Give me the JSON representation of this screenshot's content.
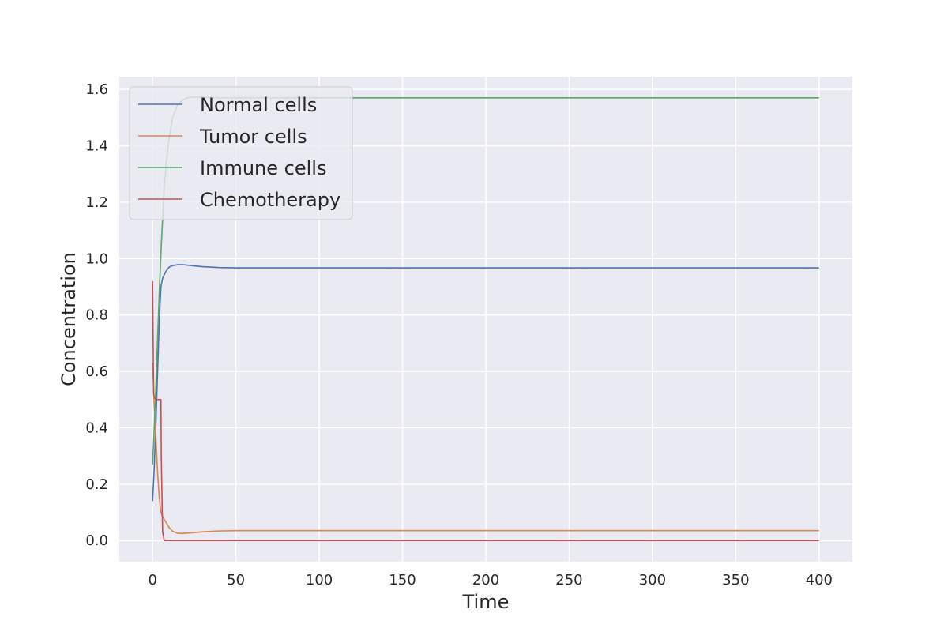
{
  "chart_data": {
    "type": "line",
    "title": "",
    "xlabel": "Time",
    "ylabel": "Concentration",
    "xlim": [
      -20,
      420
    ],
    "ylim": [
      -0.075,
      1.645
    ],
    "xticks": [
      0,
      50,
      100,
      150,
      200,
      250,
      300,
      350,
      400
    ],
    "yticks": [
      0.0,
      0.2,
      0.4,
      0.6,
      0.8,
      1.0,
      1.2,
      1.4,
      1.6
    ],
    "grid": true,
    "legend_position": "upper-left",
    "background": "#eaeaf2",
    "series": [
      {
        "name": "Normal cells",
        "color": "#4c72b0",
        "x": [
          0,
          1,
          2,
          3,
          4,
          5,
          6,
          8,
          10,
          12,
          15,
          18,
          20,
          25,
          30,
          40,
          50,
          75,
          100,
          200,
          300,
          400
        ],
        "y": [
          0.14,
          0.26,
          0.42,
          0.6,
          0.78,
          0.9,
          0.93,
          0.955,
          0.97,
          0.975,
          0.978,
          0.978,
          0.977,
          0.974,
          0.971,
          0.968,
          0.967,
          0.967,
          0.967,
          0.967,
          0.967,
          0.967
        ]
      },
      {
        "name": "Tumor cells",
        "color": "#dd8452",
        "x": [
          0,
          1,
          2,
          3,
          4,
          5,
          6,
          8,
          10,
          12,
          15,
          18,
          20,
          25,
          30,
          40,
          50,
          75,
          100,
          200,
          300,
          400
        ],
        "y": [
          0.63,
          0.48,
          0.36,
          0.24,
          0.15,
          0.1,
          0.085,
          0.065,
          0.045,
          0.033,
          0.026,
          0.025,
          0.026,
          0.028,
          0.031,
          0.034,
          0.035,
          0.035,
          0.035,
          0.035,
          0.035,
          0.035
        ]
      },
      {
        "name": "Immune cells",
        "color": "#55a868",
        "x": [
          0,
          1,
          2,
          3,
          4,
          5,
          6,
          7,
          8,
          10,
          12,
          15,
          18,
          20,
          22,
          25,
          30,
          40,
          50,
          100,
          200,
          300,
          400
        ],
        "y": [
          0.27,
          0.4,
          0.55,
          0.72,
          0.88,
          1.02,
          1.14,
          1.25,
          1.33,
          1.43,
          1.5,
          1.545,
          1.562,
          1.568,
          1.572,
          1.573,
          1.572,
          1.57,
          1.57,
          1.57,
          1.57,
          1.57,
          1.57
        ]
      },
      {
        "name": "Chemotherapy",
        "color": "#c44e52",
        "x": [
          0,
          0.6,
          1.2,
          2,
          3,
          4,
          5,
          5.2,
          6,
          7,
          10,
          50,
          100,
          200,
          300,
          400
        ],
        "y": [
          0.92,
          0.52,
          0.505,
          0.5,
          0.5,
          0.5,
          0.5,
          0.3,
          0.03,
          0.0,
          0.0,
          0.0,
          0.0,
          0.0,
          0.0,
          0.0
        ]
      }
    ]
  }
}
